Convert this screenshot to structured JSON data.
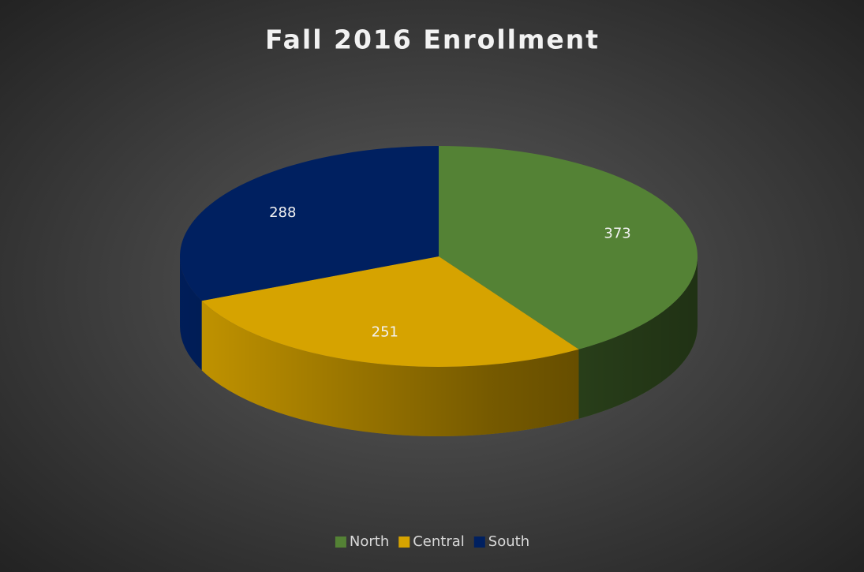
{
  "chart_data": {
    "type": "pie",
    "title": "Fall 2016 Enrollment",
    "categories": [
      "North",
      "Central",
      "South"
    ],
    "values": [
      373,
      251,
      288
    ],
    "colors": [
      "#548235",
      "#D6A300",
      "#002060"
    ],
    "legend": "bottom"
  }
}
